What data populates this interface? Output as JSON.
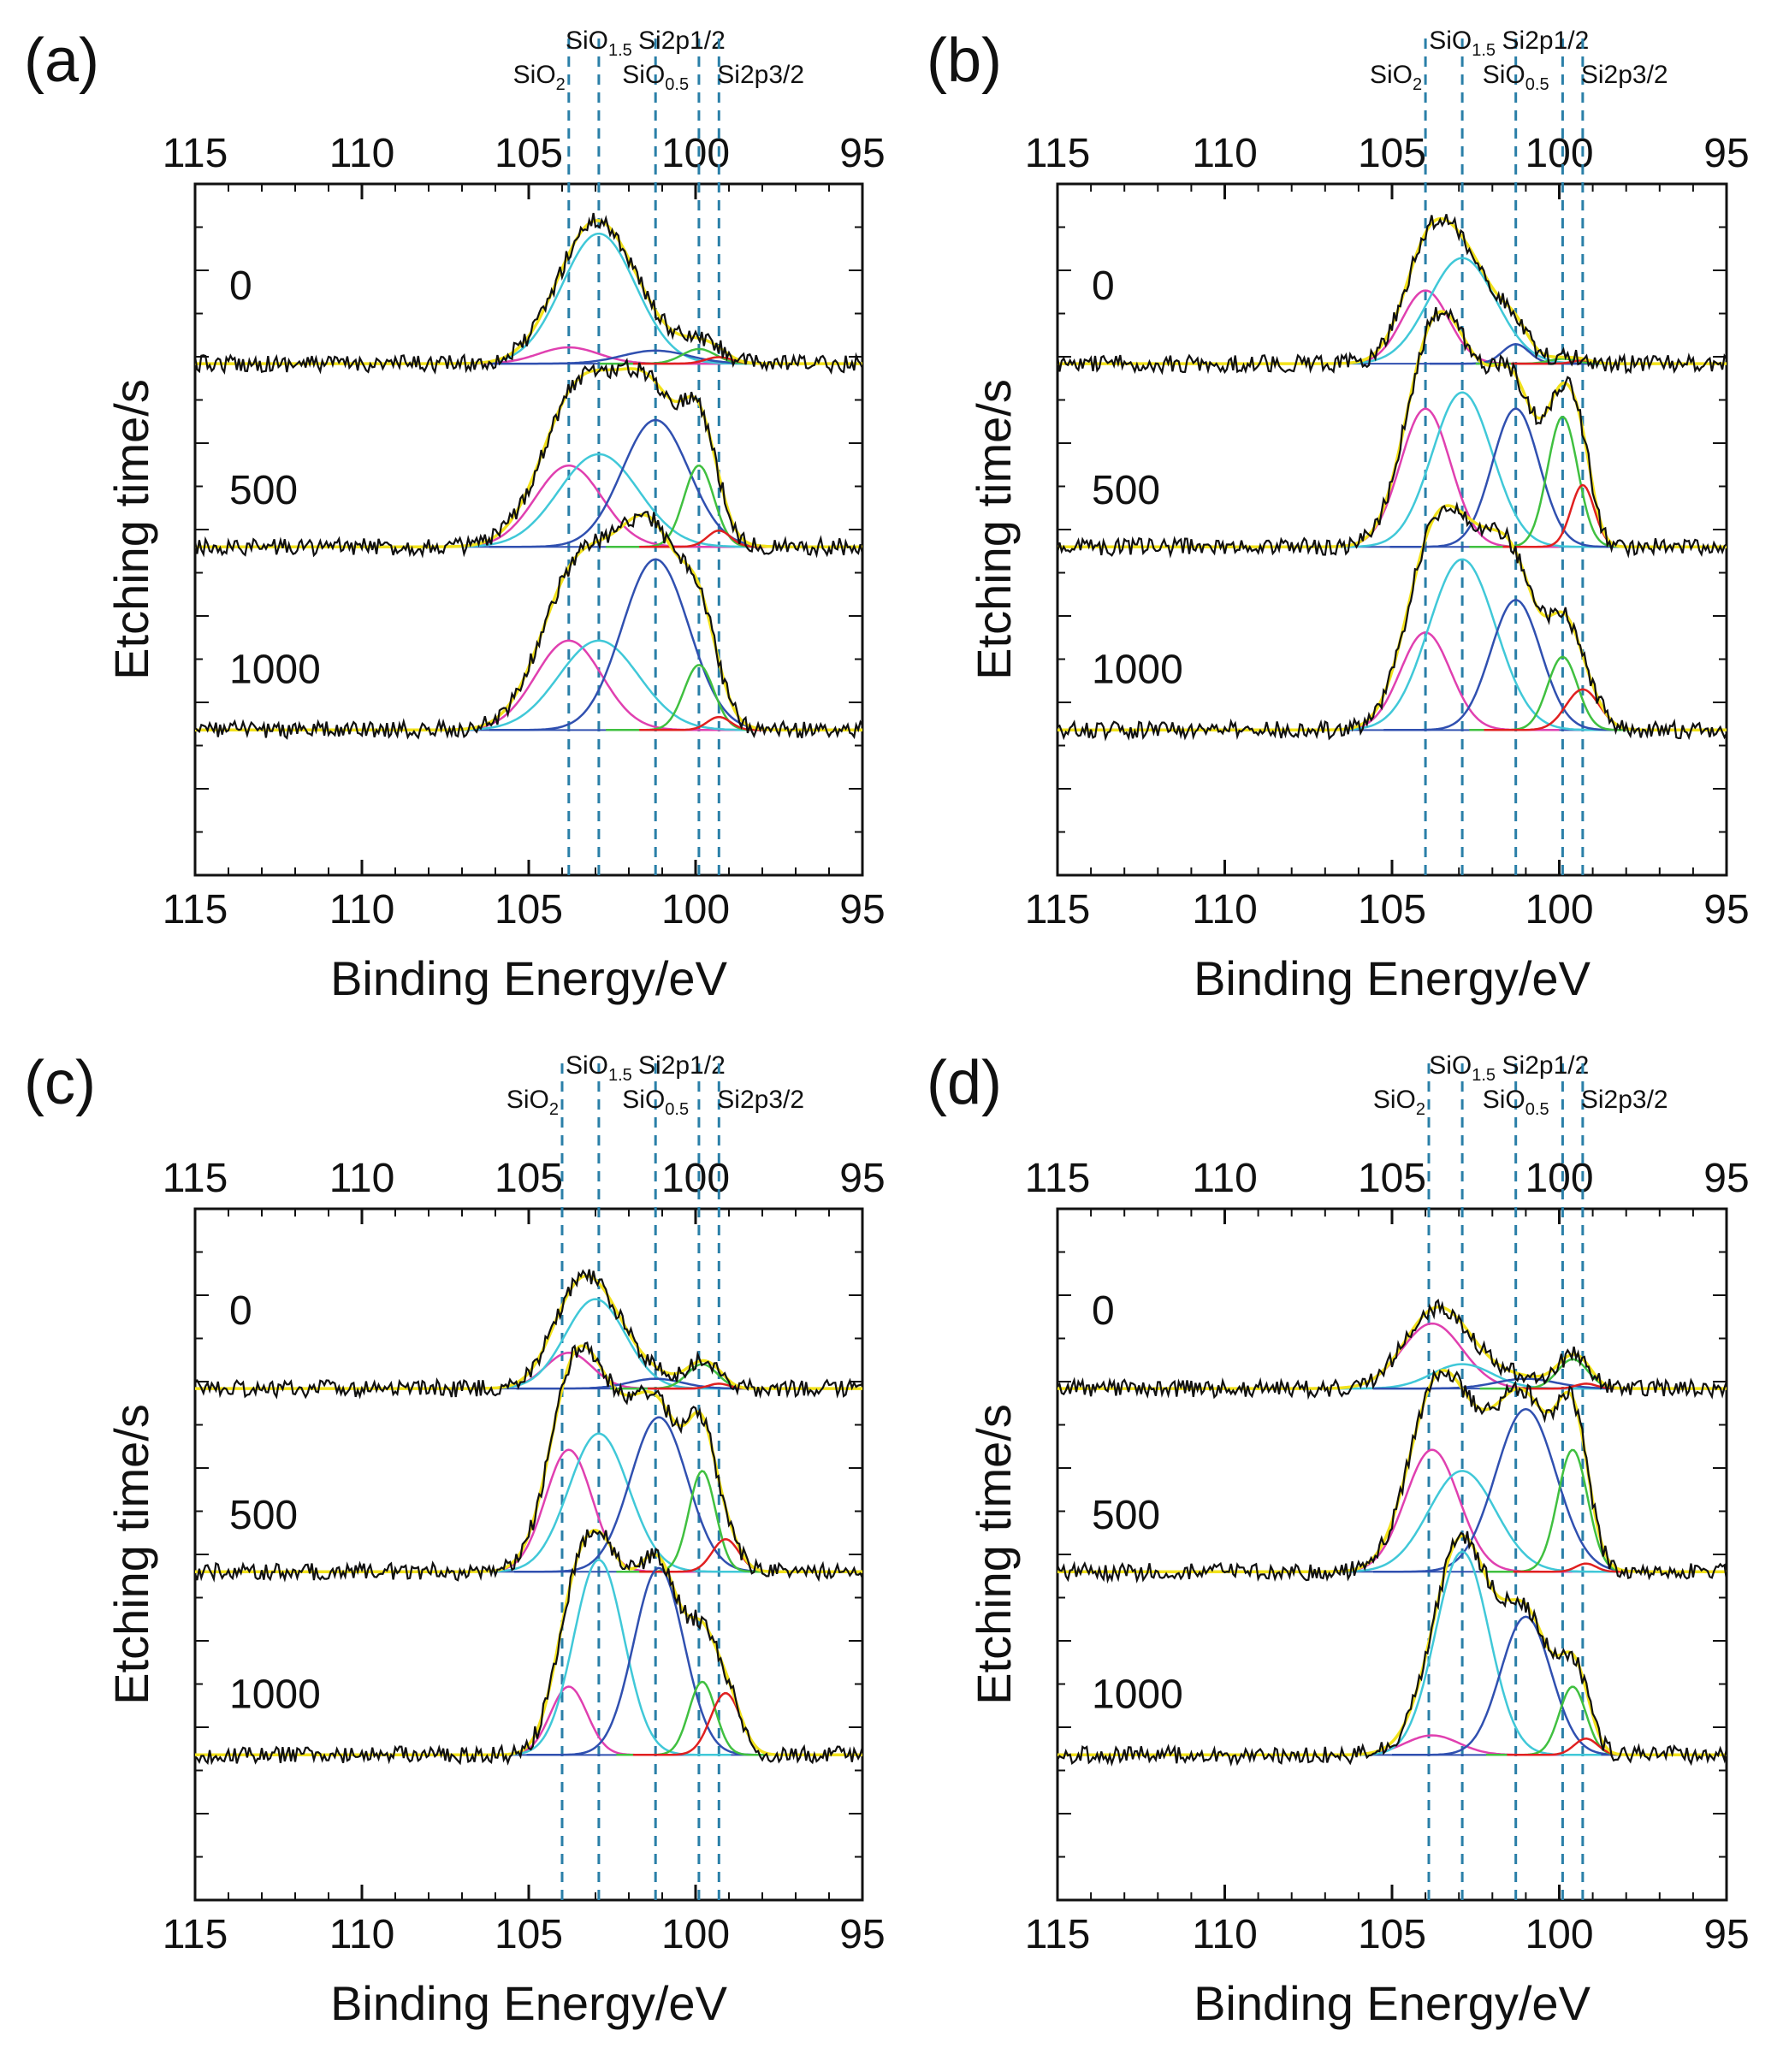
{
  "chart_data": [
    {
      "type": "line",
      "panel_label": "(a)",
      "xlabel": "Binding Energy/eV",
      "ylabel": "Etching time/s",
      "xlim": [
        115,
        95
      ],
      "x_axis_reversed": true,
      "x_ticks": [
        "115",
        "110",
        "105",
        "100",
        "95"
      ],
      "reference_lines": [
        {
          "label": "SiO",
          "sub": "2",
          "x": 103.8
        },
        {
          "label": "SiO",
          "sub": "1.5",
          "x": 102.9
        },
        {
          "label": "SiO",
          "sub": "0.5",
          "x": 101.2
        },
        {
          "label": "Si2p1/2",
          "sub": "",
          "x": 99.9
        },
        {
          "label": "Si2p3/2",
          "sub": "",
          "x": 99.3
        }
      ],
      "spectra": [
        {
          "etching_time": "0",
          "components": [
            {
              "name": "SiO2",
              "center": 103.8,
              "height": 0.1,
              "width": 0.9,
              "color": "#e040b0"
            },
            {
              "name": "SiO1.5",
              "center": 102.9,
              "height": 0.8,
              "width": 1.1,
              "color": "#40c8d8"
            },
            {
              "name": "SiO0.5",
              "center": 101.2,
              "height": 0.08,
              "width": 1.0,
              "color": "#3050b0"
            },
            {
              "name": "Si2p1/2",
              "center": 99.9,
              "height": 0.09,
              "width": 0.5,
              "color": "#40c040"
            },
            {
              "name": "Si2p3/2",
              "center": 99.3,
              "height": 0.04,
              "width": 0.4,
              "color": "#e02020"
            }
          ]
        },
        {
          "etching_time": "500",
          "components": [
            {
              "name": "SiO2",
              "center": 103.8,
              "height": 0.5,
              "width": 1.0,
              "color": "#e040b0"
            },
            {
              "name": "SiO1.5",
              "center": 102.9,
              "height": 0.57,
              "width": 1.2,
              "color": "#40c8d8"
            },
            {
              "name": "SiO0.5",
              "center": 101.2,
              "height": 0.78,
              "width": 1.0,
              "color": "#3050b0"
            },
            {
              "name": "Si2p1/2",
              "center": 99.9,
              "height": 0.5,
              "width": 0.45,
              "color": "#40c040"
            },
            {
              "name": "Si2p3/2",
              "center": 99.3,
              "height": 0.1,
              "width": 0.35,
              "color": "#e02020"
            }
          ]
        },
        {
          "etching_time": "1000",
          "components": [
            {
              "name": "SiO2",
              "center": 103.8,
              "height": 0.55,
              "width": 1.0,
              "color": "#e040b0"
            },
            {
              "name": "SiO1.5",
              "center": 102.9,
              "height": 0.55,
              "width": 1.2,
              "color": "#40c8d8"
            },
            {
              "name": "SiO0.5",
              "center": 101.2,
              "height": 1.05,
              "width": 1.0,
              "color": "#3050b0"
            },
            {
              "name": "Si2p1/2",
              "center": 99.9,
              "height": 0.4,
              "width": 0.45,
              "color": "#40c040"
            },
            {
              "name": "Si2p3/2",
              "center": 99.3,
              "height": 0.08,
              "width": 0.35,
              "color": "#e02020"
            }
          ]
        }
      ]
    },
    {
      "type": "line",
      "panel_label": "(b)",
      "xlabel": "Binding Energy/eV",
      "ylabel": "Etching time/s",
      "xlim": [
        115,
        95
      ],
      "x_axis_reversed": true,
      "x_ticks": [
        "115",
        "110",
        "105",
        "100",
        "95"
      ],
      "reference_lines": [
        {
          "label": "SiO",
          "sub": "2",
          "x": 104.0
        },
        {
          "label": "SiO",
          "sub": "1.5",
          "x": 102.9
        },
        {
          "label": "SiO",
          "sub": "0.5",
          "x": 101.3
        },
        {
          "label": "Si2p1/2",
          "sub": "",
          "x": 99.9
        },
        {
          "label": "Si2p3/2",
          "sub": "",
          "x": 99.3
        }
      ],
      "spectra": [
        {
          "etching_time": "0",
          "components": [
            {
              "name": "SiO2",
              "center": 104.0,
              "height": 0.45,
              "width": 0.7,
              "color": "#e040b0"
            },
            {
              "name": "SiO1.5",
              "center": 102.9,
              "height": 0.65,
              "width": 1.0,
              "color": "#40c8d8"
            },
            {
              "name": "SiO0.5",
              "center": 101.3,
              "height": 0.12,
              "width": 0.4,
              "color": "#3050b0"
            },
            {
              "name": "Si2p1/2",
              "center": 99.9,
              "height": 0.03,
              "width": 0.4,
              "color": "#40c040"
            },
            {
              "name": "Si2p3/2",
              "center": 99.3,
              "height": 0.02,
              "width": 0.3,
              "color": "#e02020"
            }
          ]
        },
        {
          "etching_time": "500",
          "components": [
            {
              "name": "SiO2",
              "center": 104.0,
              "height": 0.85,
              "width": 0.75,
              "color": "#e040b0"
            },
            {
              "name": "SiO1.5",
              "center": 102.9,
              "height": 0.95,
              "width": 0.9,
              "color": "#40c8d8"
            },
            {
              "name": "SiO0.5",
              "center": 101.3,
              "height": 0.85,
              "width": 0.7,
              "color": "#3050b0"
            },
            {
              "name": "Si2p1/2",
              "center": 99.9,
              "height": 0.8,
              "width": 0.45,
              "color": "#40c040"
            },
            {
              "name": "Si2p3/2",
              "center": 99.3,
              "height": 0.38,
              "width": 0.35,
              "color": "#e02020"
            }
          ]
        },
        {
          "etching_time": "1000",
          "components": [
            {
              "name": "SiO2",
              "center": 104.0,
              "height": 0.6,
              "width": 0.75,
              "color": "#e040b0"
            },
            {
              "name": "SiO1.5",
              "center": 102.9,
              "height": 1.05,
              "width": 1.0,
              "color": "#40c8d8"
            },
            {
              "name": "SiO0.5",
              "center": 101.3,
              "height": 0.8,
              "width": 0.75,
              "color": "#3050b0"
            },
            {
              "name": "Si2p1/2",
              "center": 99.9,
              "height": 0.45,
              "width": 0.45,
              "color": "#40c040"
            },
            {
              "name": "Si2p3/2",
              "center": 99.3,
              "height": 0.25,
              "width": 0.5,
              "color": "#e02020"
            }
          ]
        }
      ]
    },
    {
      "type": "line",
      "panel_label": "(c)",
      "xlabel": "Binding Energy/eV",
      "ylabel": "Etching time/s",
      "xlim": [
        115,
        95
      ],
      "x_axis_reversed": true,
      "x_ticks": [
        "115",
        "110",
        "105",
        "100",
        "95"
      ],
      "reference_lines": [
        {
          "label": "SiO",
          "sub": "2",
          "x": 104.0
        },
        {
          "label": "SiO",
          "sub": "1.5",
          "x": 102.9
        },
        {
          "label": "SiO",
          "sub": "0.5",
          "x": 101.2
        },
        {
          "label": "Si2p1/2",
          "sub": "",
          "x": 99.9
        },
        {
          "label": "Si2p3/2",
          "sub": "",
          "x": 99.3
        }
      ],
      "spectra": [
        {
          "etching_time": "0",
          "components": [
            {
              "name": "SiO2",
              "center": 103.8,
              "height": 0.22,
              "width": 0.7,
              "color": "#e040b0"
            },
            {
              "name": "SiO1.5",
              "center": 103.0,
              "height": 0.55,
              "width": 0.9,
              "color": "#40c8d8"
            },
            {
              "name": "SiO0.5",
              "center": 101.2,
              "height": 0.06,
              "width": 0.8,
              "color": "#3050b0"
            },
            {
              "name": "Si2p1/2",
              "center": 99.8,
              "height": 0.15,
              "width": 0.45,
              "color": "#40c040"
            },
            {
              "name": "Si2p3/2",
              "center": 99.3,
              "height": 0.03,
              "width": 0.3,
              "color": "#e02020"
            }
          ]
        },
        {
          "etching_time": "500",
          "components": [
            {
              "name": "SiO2",
              "center": 103.8,
              "height": 0.75,
              "width": 0.7,
              "color": "#e040b0"
            },
            {
              "name": "SiO1.5",
              "center": 102.9,
              "height": 0.85,
              "width": 0.9,
              "color": "#40c8d8"
            },
            {
              "name": "SiO0.5",
              "center": 101.1,
              "height": 0.95,
              "width": 0.85,
              "color": "#3050b0"
            },
            {
              "name": "Si2p1/2",
              "center": 99.8,
              "height": 0.62,
              "width": 0.4,
              "color": "#40c040"
            },
            {
              "name": "Si2p3/2",
              "center": 99.1,
              "height": 0.2,
              "width": 0.4,
              "color": "#e02020"
            }
          ]
        },
        {
          "etching_time": "1000",
          "components": [
            {
              "name": "SiO2",
              "center": 103.8,
              "height": 0.42,
              "width": 0.55,
              "color": "#e040b0"
            },
            {
              "name": "SiO1.5",
              "center": 102.9,
              "height": 1.2,
              "width": 0.75,
              "color": "#40c8d8"
            },
            {
              "name": "SiO0.5",
              "center": 101.1,
              "height": 1.15,
              "width": 0.75,
              "color": "#3050b0"
            },
            {
              "name": "Si2p1/2",
              "center": 99.8,
              "height": 0.45,
              "width": 0.4,
              "color": "#40c040"
            },
            {
              "name": "Si2p3/2",
              "center": 99.1,
              "height": 0.38,
              "width": 0.45,
              "color": "#e02020"
            }
          ]
        }
      ]
    },
    {
      "type": "line",
      "panel_label": "(d)",
      "xlabel": "Binding Energy/eV",
      "ylabel": "Etching time/s",
      "xlim": [
        115,
        95
      ],
      "x_axis_reversed": true,
      "x_ticks": [
        "115",
        "110",
        "105",
        "100",
        "95"
      ],
      "reference_lines": [
        {
          "label": "SiO",
          "sub": "2",
          "x": 103.9
        },
        {
          "label": "SiO",
          "sub": "1.5",
          "x": 102.9
        },
        {
          "label": "SiO",
          "sub": "0.5",
          "x": 101.3
        },
        {
          "label": "Si2p1/2",
          "sub": "",
          "x": 99.9
        },
        {
          "label": "Si2p3/2",
          "sub": "",
          "x": 99.3
        }
      ],
      "spectra": [
        {
          "etching_time": "0",
          "components": [
            {
              "name": "SiO2",
              "center": 103.8,
              "height": 0.4,
              "width": 0.9,
              "color": "#e040b0"
            },
            {
              "name": "SiO1.5",
              "center": 102.9,
              "height": 0.15,
              "width": 0.9,
              "color": "#40c8d8"
            },
            {
              "name": "SiO0.5",
              "center": 101.0,
              "height": 0.06,
              "width": 0.9,
              "color": "#3050b0"
            },
            {
              "name": "Si2p1/2",
              "center": 99.6,
              "height": 0.18,
              "width": 0.45,
              "color": "#40c040"
            },
            {
              "name": "Si2p3/2",
              "center": 99.2,
              "height": 0.03,
              "width": 0.3,
              "color": "#e02020"
            }
          ]
        },
        {
          "etching_time": "500",
          "components": [
            {
              "name": "SiO2",
              "center": 103.8,
              "height": 0.75,
              "width": 0.8,
              "color": "#e040b0"
            },
            {
              "name": "SiO1.5",
              "center": 102.9,
              "height": 0.62,
              "width": 1.0,
              "color": "#40c8d8"
            },
            {
              "name": "SiO0.5",
              "center": 101.0,
              "height": 1.0,
              "width": 0.9,
              "color": "#3050b0"
            },
            {
              "name": "Si2p1/2",
              "center": 99.6,
              "height": 0.75,
              "width": 0.45,
              "color": "#40c040"
            },
            {
              "name": "Si2p3/2",
              "center": 99.2,
              "height": 0.05,
              "width": 0.3,
              "color": "#e02020"
            }
          ]
        },
        {
          "etching_time": "1000",
          "components": [
            {
              "name": "SiO2",
              "center": 103.8,
              "height": 0.12,
              "width": 0.8,
              "color": "#e040b0"
            },
            {
              "name": "SiO1.5",
              "center": 102.9,
              "height": 1.25,
              "width": 0.8,
              "color": "#40c8d8"
            },
            {
              "name": "SiO0.5",
              "center": 101.0,
              "height": 0.85,
              "width": 0.75,
              "color": "#3050b0"
            },
            {
              "name": "Si2p1/2",
              "center": 99.6,
              "height": 0.42,
              "width": 0.4,
              "color": "#40c040"
            },
            {
              "name": "Si2p3/2",
              "center": 99.2,
              "height": 0.1,
              "width": 0.35,
              "color": "#e02020"
            }
          ]
        }
      ]
    }
  ],
  "colors": {
    "raw_data": "#111111",
    "envelope": "#f2e21c",
    "baseline": "#3050b0",
    "reference_line": "#2a7fa8"
  }
}
